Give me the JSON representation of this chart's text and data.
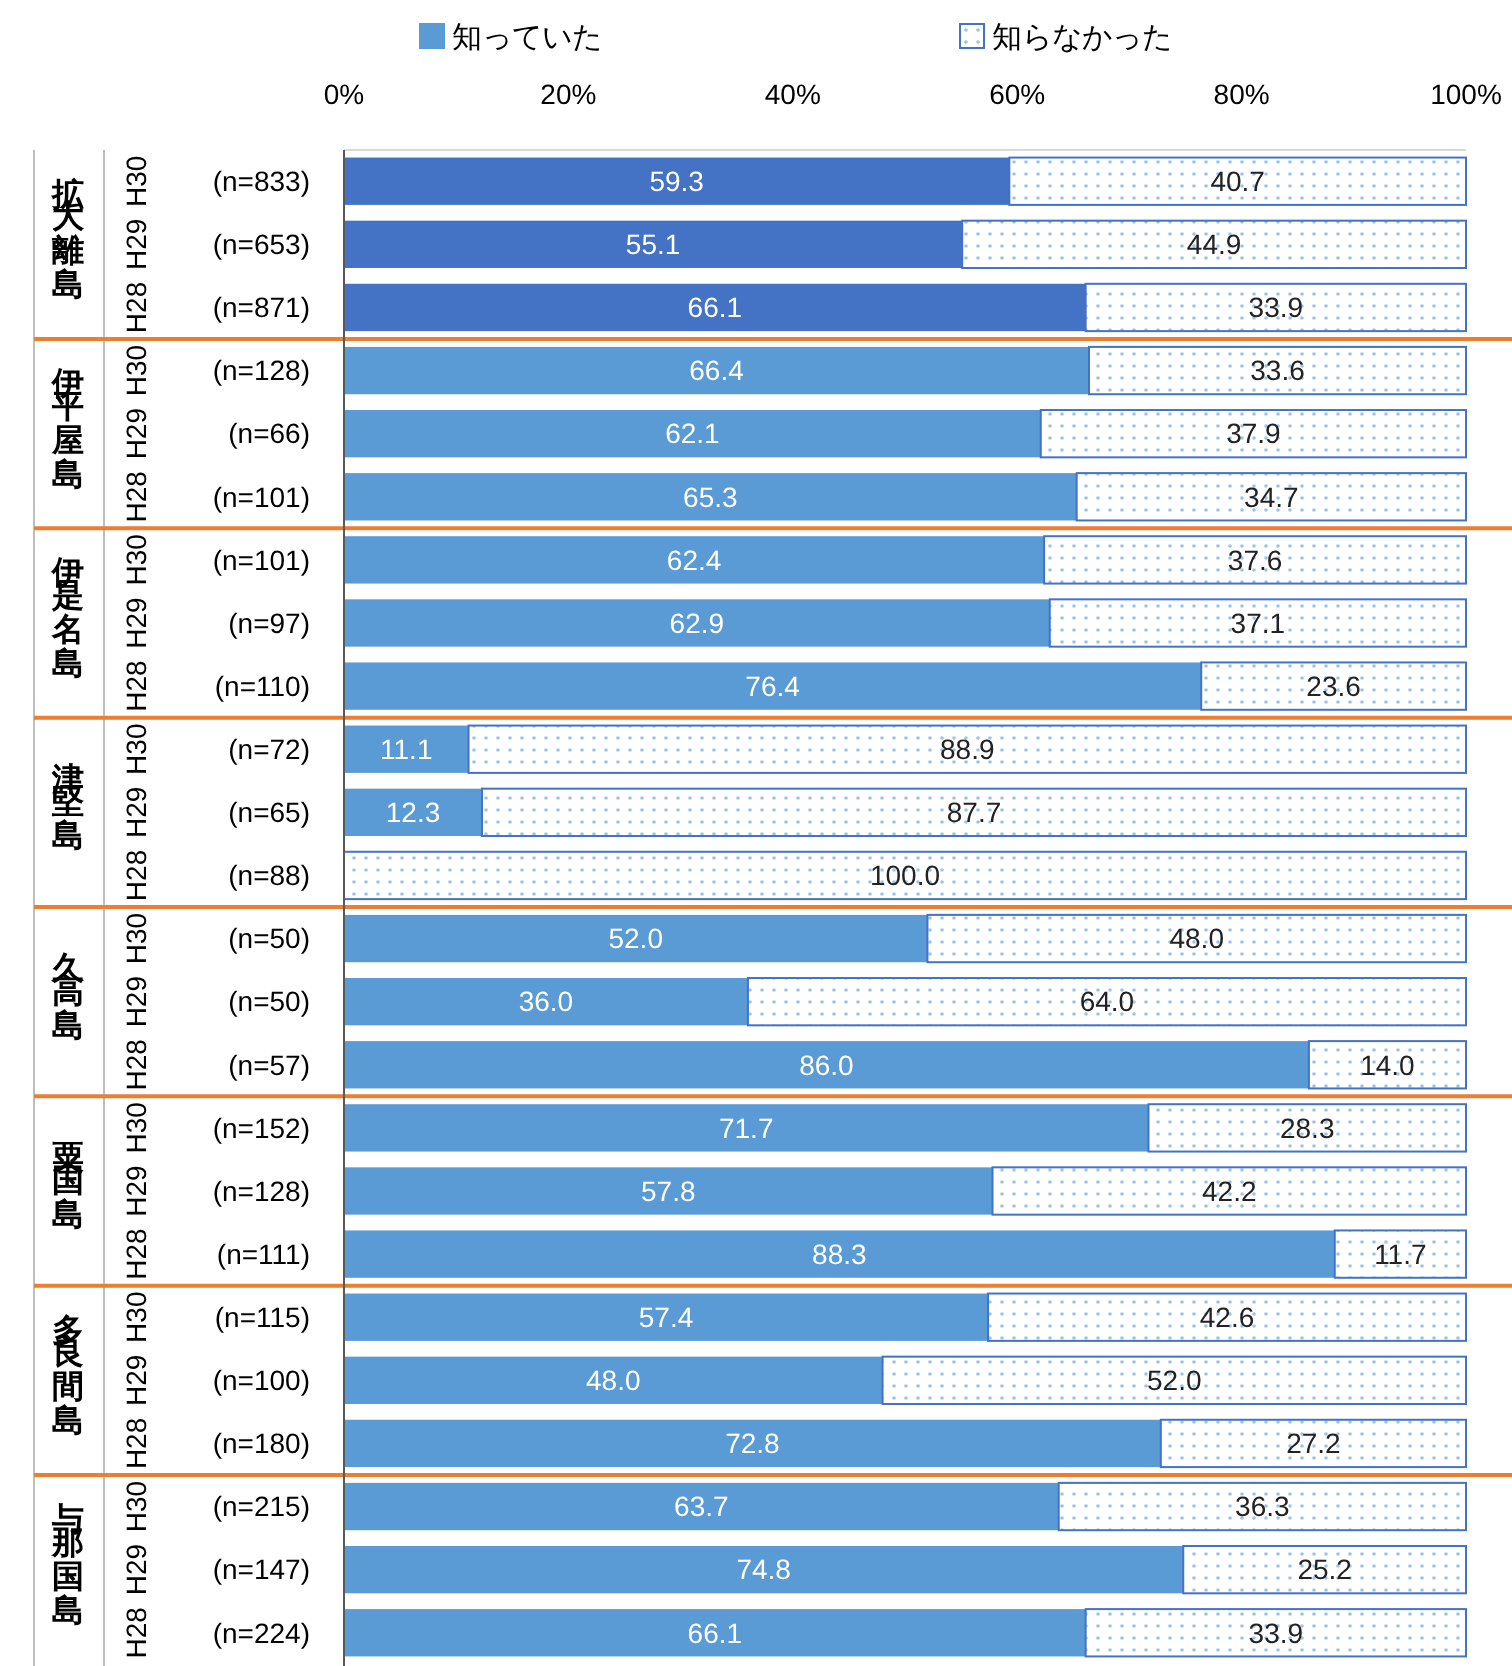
{
  "chart_data": {
    "type": "bar",
    "orientation": "horizontal",
    "stacked": true,
    "categories": [
      "(n=833)",
      "(n=653)",
      "(n=871)",
      "(n=128)",
      "(n=66)",
      "(n=101)",
      "(n=101)",
      "(n=97)",
      "(n=110)",
      "(n=72)",
      "(n=65)",
      "(n=88)",
      "(n=50)",
      "(n=50)",
      "(n=57)",
      "(n=152)",
      "(n=128)",
      "(n=111)",
      "(n=115)",
      "(n=100)",
      "(n=180)",
      "(n=215)",
      "(n=147)",
      "(n=224)"
    ],
    "series": [
      {
        "name": "知っていた",
        "colors": [
          "#4472c4",
          "#4472c4",
          "#4472c4",
          "#5b9bd5",
          "#5b9bd5",
          "#5b9bd5",
          "#5b9bd5",
          "#5b9bd5",
          "#5b9bd5",
          "#5b9bd5",
          "#5b9bd5",
          "#5b9bd5",
          "#5b9bd5",
          "#5b9bd5",
          "#5b9bd5",
          "#5b9bd5",
          "#5b9bd5",
          "#5b9bd5",
          "#5b9bd5",
          "#5b9bd5",
          "#5b9bd5",
          "#5b9bd5",
          "#5b9bd5",
          "#5b9bd5"
        ],
        "values": [
          59.3,
          55.1,
          66.1,
          66.4,
          62.1,
          65.3,
          62.4,
          62.9,
          76.4,
          11.1,
          12.3,
          0,
          52.0,
          36.0,
          86.0,
          71.7,
          57.8,
          88.3,
          57.4,
          48.0,
          72.8,
          63.7,
          74.8,
          66.1
        ],
        "value_labels": [
          "59.3",
          "55.1",
          "66.1",
          "66.4",
          "62.1",
          "65.3",
          "62.4",
          "62.9",
          "76.4",
          "11.1",
          "12.3",
          null,
          "52.0",
          "36.0",
          "86.0",
          "71.7",
          "57.8",
          "88.3",
          "57.4",
          "48.0",
          "72.8",
          "63.7",
          "74.8",
          "66.1"
        ]
      },
      {
        "name": "知らなかった",
        "color": "#4472c4",
        "values": [
          40.7,
          44.9,
          33.9,
          33.6,
          37.9,
          34.7,
          37.6,
          37.1,
          23.6,
          88.9,
          87.7,
          100.0,
          48.0,
          64.0,
          14.0,
          28.3,
          42.2,
          11.7,
          42.6,
          52.0,
          27.2,
          36.3,
          25.2,
          33.9
        ],
        "value_labels": [
          "40.7",
          "44.9",
          "33.9",
          "33.6",
          "37.9",
          "34.7",
          "37.6",
          "37.1",
          "23.6",
          "88.9",
          "87.7",
          "100.0",
          "48.0",
          "64.0",
          "14.0",
          "28.3",
          "42.2",
          "11.7",
          "42.6",
          "52.0",
          "27.2",
          "36.3",
          "25.2",
          "33.9"
        ]
      }
    ],
    "xlim": [
      0,
      100
    ],
    "xticks": [
      {
        "value": 0,
        "label": "0%"
      },
      {
        "value": 20,
        "label": "20%"
      },
      {
        "value": 40,
        "label": "40%"
      },
      {
        "value": 60,
        "label": "60%"
      },
      {
        "value": 80,
        "label": "80%"
      },
      {
        "value": 100,
        "label": "100%"
      }
    ],
    "annotations": [
      "拡大離島",
      "H30",
      "H29",
      "H28",
      "伊平屋島",
      "H30",
      "H29",
      "H28",
      "伊是名島",
      "H30",
      "H29",
      "H28",
      "津堅島",
      "H30",
      "H29",
      "H28",
      "久高島",
      "H30",
      "H29",
      "H28",
      "粟国島",
      "H30",
      "H29",
      "H28",
      "多良間島",
      "H30",
      "H29",
      "H28",
      "与那国島",
      "H30",
      "H29",
      "H28"
    ],
    "legend": "top",
    "grid": false
  }
}
